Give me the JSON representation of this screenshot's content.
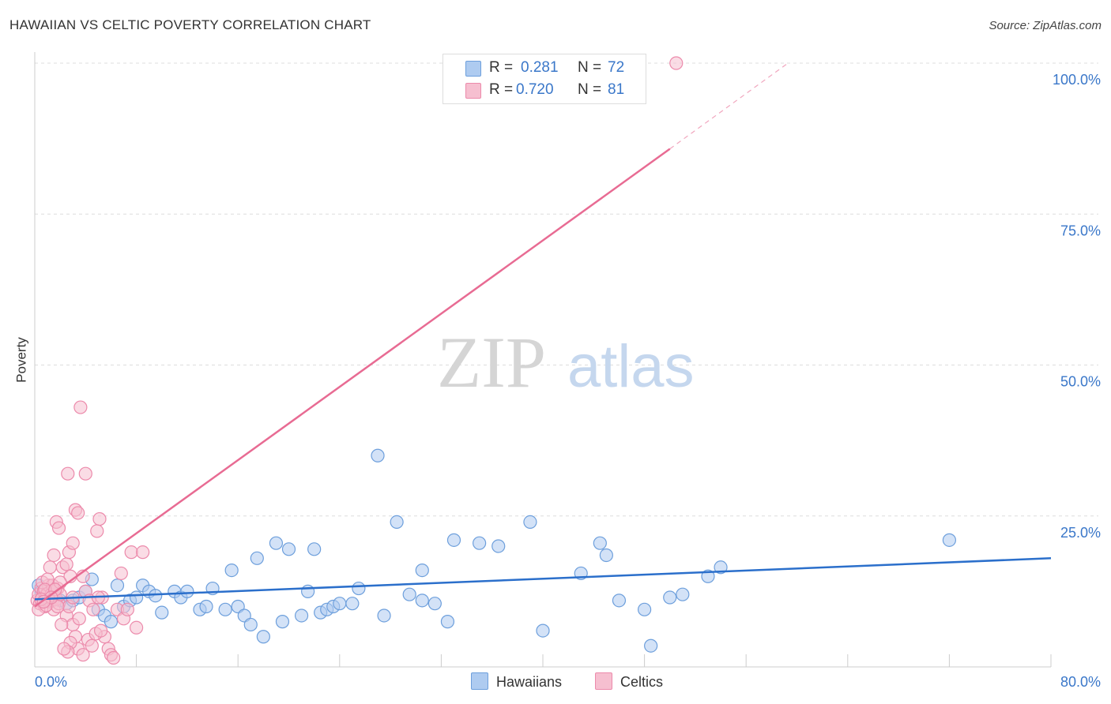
{
  "title": "HAWAIIAN VS CELTIC POVERTY CORRELATION CHART",
  "source": "Source: ZipAtlas.com",
  "watermark": {
    "part1": "ZIP",
    "part2": "atlas"
  },
  "legend_top": {
    "rows": [
      {
        "r_label": "R =",
        "r_value": "0.281",
        "n_label": "N =",
        "n_value": "72"
      },
      {
        "r_label": "R =",
        "r_value": "0.720",
        "n_label": "N =",
        "n_value": "81"
      }
    ]
  },
  "legend_bottom": {
    "hawaiians": "Hawaiians",
    "celtics": "Celtics"
  },
  "colors": {
    "blue_fill": "#aecbf0",
    "blue_stroke": "#6d9fdc",
    "blue_line": "#2b6fcb",
    "pink_fill": "#f6bfd0",
    "pink_stroke": "#ec8aab",
    "pink_line": "#e86b93",
    "tick_label": "#3a77c9",
    "grid": "#dddddd"
  },
  "chart_data": {
    "type": "scatter",
    "title": "HAWAIIAN VS CELTIC POVERTY CORRELATION CHART",
    "xlabel": "",
    "ylabel": "Poverty",
    "xlim": [
      0,
      80
    ],
    "ylim": [
      0,
      100
    ],
    "x_tick_labels": [
      {
        "value": 0,
        "label": "0.0%"
      },
      {
        "value": 80,
        "label": "80.0%"
      }
    ],
    "y_tick_labels": [
      {
        "value": 25,
        "label": "25.0%"
      },
      {
        "value": 50,
        "label": "50.0%"
      },
      {
        "value": 75,
        "label": "75.0%"
      },
      {
        "value": 100,
        "label": "100.0%"
      }
    ],
    "series": [
      {
        "name": "Hawaiians",
        "r": 0.281,
        "n": 72,
        "trend": {
          "x1": 0,
          "y1": 11.2,
          "x2": 80,
          "y2": 18.0
        },
        "points": [
          [
            0.3,
            13.5
          ],
          [
            0.5,
            12.5
          ],
          [
            0.8,
            11.8
          ],
          [
            1.0,
            12.2
          ],
          [
            1.2,
            11.0
          ],
          [
            1.5,
            12.0
          ],
          [
            2.0,
            11.0
          ],
          [
            2.5,
            10.5
          ],
          [
            3.0,
            11.0
          ],
          [
            3.5,
            11.5
          ],
          [
            4.0,
            12.5
          ],
          [
            4.5,
            14.5
          ],
          [
            5.0,
            9.5
          ],
          [
            5.5,
            8.5
          ],
          [
            6.0,
            7.5
          ],
          [
            6.5,
            13.5
          ],
          [
            7.0,
            10.0
          ],
          [
            7.5,
            11.0
          ],
          [
            8.0,
            11.5
          ],
          [
            8.5,
            13.5
          ],
          [
            9.0,
            12.5
          ],
          [
            9.5,
            11.8
          ],
          [
            10.0,
            9.0
          ],
          [
            11.0,
            12.5
          ],
          [
            11.5,
            11.5
          ],
          [
            12.0,
            12.5
          ],
          [
            13.0,
            9.5
          ],
          [
            13.5,
            10.0
          ],
          [
            14.0,
            13.0
          ],
          [
            15.0,
            9.5
          ],
          [
            15.5,
            16.0
          ],
          [
            16.0,
            10.0
          ],
          [
            16.5,
            8.5
          ],
          [
            17.0,
            7.0
          ],
          [
            17.5,
            18.0
          ],
          [
            18.0,
            5.0
          ],
          [
            19.0,
            20.5
          ],
          [
            19.5,
            7.5
          ],
          [
            20.0,
            19.5
          ],
          [
            21.0,
            8.5
          ],
          [
            21.5,
            12.5
          ],
          [
            22.0,
            19.5
          ],
          [
            22.5,
            9.0
          ],
          [
            23.0,
            9.5
          ],
          [
            23.5,
            10.0
          ],
          [
            24.0,
            10.5
          ],
          [
            25.0,
            10.5
          ],
          [
            25.5,
            13.0
          ],
          [
            27.0,
            35.0
          ],
          [
            27.5,
            8.5
          ],
          [
            28.5,
            24.0
          ],
          [
            29.5,
            12.0
          ],
          [
            30.5,
            11.0
          ],
          [
            30.5,
            16.0
          ],
          [
            31.5,
            10.5
          ],
          [
            32.5,
            7.5
          ],
          [
            33.0,
            21.0
          ],
          [
            35.0,
            20.5
          ],
          [
            36.5,
            20.0
          ],
          [
            39.0,
            24.0
          ],
          [
            40.0,
            6.0
          ],
          [
            43.0,
            15.5
          ],
          [
            44.5,
            20.5
          ],
          [
            45.0,
            18.5
          ],
          [
            46.0,
            11.0
          ],
          [
            48.0,
            9.5
          ],
          [
            48.5,
            3.5
          ],
          [
            50.0,
            11.5
          ],
          [
            51.0,
            12.0
          ],
          [
            53.0,
            15.0
          ],
          [
            54.0,
            16.5
          ],
          [
            72.0,
            21.0
          ]
        ]
      },
      {
        "name": "Celtics",
        "r": 0.72,
        "n": 81,
        "trend": {
          "x1": 0,
          "y1": 10.0,
          "x2": 50,
          "y2": 85.8
        },
        "trend_extension": {
          "x1": 50,
          "y1": 85.8,
          "x2": 59.3,
          "y2": 100.0
        },
        "points": [
          [
            0.2,
            11.0
          ],
          [
            0.3,
            12.0
          ],
          [
            0.4,
            10.5
          ],
          [
            0.5,
            13.0
          ],
          [
            0.6,
            11.5
          ],
          [
            0.7,
            12.5
          ],
          [
            0.8,
            10.0
          ],
          [
            0.9,
            11.8
          ],
          [
            1.0,
            12.2
          ],
          [
            1.1,
            13.5
          ],
          [
            1.2,
            10.8
          ],
          [
            1.3,
            12.0
          ],
          [
            1.4,
            11.0
          ],
          [
            1.5,
            9.5
          ],
          [
            1.6,
            12.5
          ],
          [
            1.7,
            11.2
          ],
          [
            1.8,
            13.0
          ],
          [
            1.9,
            10.5
          ],
          [
            2.0,
            12.0
          ],
          [
            0.3,
            9.5
          ],
          [
            0.6,
            14.0
          ],
          [
            0.9,
            10.2
          ],
          [
            1.2,
            16.5
          ],
          [
            1.5,
            18.5
          ],
          [
            1.7,
            24.0
          ],
          [
            1.9,
            23.0
          ],
          [
            2.2,
            16.5
          ],
          [
            2.5,
            17.0
          ],
          [
            2.7,
            19.0
          ],
          [
            2.8,
            15.0
          ],
          [
            3.0,
            20.5
          ],
          [
            3.2,
            26.0
          ],
          [
            3.4,
            25.5
          ],
          [
            3.6,
            43.0
          ],
          [
            3.8,
            15.0
          ],
          [
            4.0,
            12.5
          ],
          [
            4.3,
            11.0
          ],
          [
            4.6,
            9.5
          ],
          [
            4.9,
            22.5
          ],
          [
            5.1,
            24.5
          ],
          [
            5.3,
            11.5
          ],
          [
            5.5,
            5.0
          ],
          [
            5.8,
            3.0
          ],
          [
            6.0,
            2.0
          ],
          [
            6.2,
            1.5
          ],
          [
            6.5,
            9.5
          ],
          [
            6.8,
            15.5
          ],
          [
            7.0,
            8.0
          ],
          [
            7.3,
            9.5
          ],
          [
            7.6,
            19.0
          ],
          [
            8.0,
            6.5
          ],
          [
            8.5,
            19.0
          ],
          [
            2.5,
            8.5
          ],
          [
            2.7,
            10.0
          ],
          [
            3.0,
            7.0
          ],
          [
            3.2,
            5.0
          ],
          [
            3.4,
            3.0
          ],
          [
            2.8,
            4.0
          ],
          [
            2.6,
            2.5
          ],
          [
            2.3,
            3.0
          ],
          [
            2.1,
            7.0
          ],
          [
            1.8,
            10.0
          ],
          [
            1.4,
            13.5
          ],
          [
            1.0,
            14.5
          ],
          [
            0.8,
            12.8
          ],
          [
            0.5,
            11.2
          ],
          [
            4.2,
            4.5
          ],
          [
            4.5,
            3.5
          ],
          [
            3.8,
            2.0
          ],
          [
            4.8,
            5.5
          ],
          [
            5.2,
            6.0
          ],
          [
            4.0,
            32.0
          ],
          [
            2.6,
            32.0
          ],
          [
            3.5,
            8.0
          ],
          [
            3.0,
            11.5
          ],
          [
            2.0,
            14.0
          ],
          [
            1.6,
            12.8
          ],
          [
            1.3,
            11.5
          ],
          [
            0.7,
            10.8
          ],
          [
            5.0,
            11.5
          ],
          [
            50.5,
            100.0
          ]
        ]
      }
    ]
  }
}
